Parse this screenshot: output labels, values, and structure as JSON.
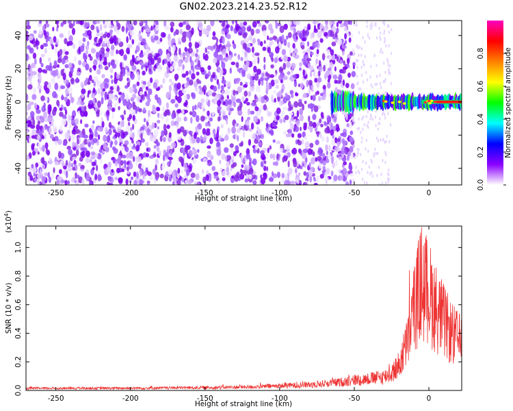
{
  "title": "GN02.2023.214.23.52.R12",
  "chart_data": [
    {
      "type": "heatmap",
      "xlabel": "Height of straight line (km)",
      "ylabel": "Frequency (Hz)",
      "xlim": [
        -270,
        22
      ],
      "ylim": [
        -50,
        49
      ],
      "xticks": [
        -250,
        -200,
        -150,
        -100,
        -50,
        0
      ],
      "yticks": [
        -40,
        -20,
        0,
        20,
        40
      ],
      "colorbar": {
        "label": "Normalized spectral amplitude",
        "range": [
          0,
          1
        ],
        "ticks": [
          "0.0",
          "0.2",
          "0.4",
          "0.6",
          "0.8"
        ],
        "colors": [
          "#ffffff",
          "#8b00ff",
          "#0000ff",
          "#00ffff",
          "#00ff00",
          "#ffff00",
          "#ff8000",
          "#ff0000",
          "#ff00c0"
        ]
      },
      "noise_extent_km": [
        -270,
        -50
      ],
      "signal": {
        "x_start": -65,
        "x_end": 22,
        "center_hz": 0,
        "half_width_hz": 4,
        "peak_x": 10
      }
    },
    {
      "type": "line",
      "xlabel": "Height of straight line (km)",
      "ylabel": "SNR (10 * v/v)",
      "y_multiplier": "(x10",
      "y_multiplier_exp": "4",
      "y_multiplier_close": ")",
      "xlim": [
        -270,
        22
      ],
      "ylim": [
        0,
        1.15
      ],
      "xticks": [
        -250,
        -200,
        -150,
        -100,
        -50,
        0
      ],
      "yticks": [
        "0.0",
        "0.2",
        "0.4",
        "0.6",
        "0.8",
        "1.0"
      ],
      "grid": false,
      "series": [
        {
          "color": "#ee3333",
          "envelope_x": [
            -270,
            -200,
            -150,
            -120,
            -100,
            -80,
            -60,
            -50,
            -40,
            -30,
            -25,
            -20,
            -15,
            -10,
            -5,
            0,
            5,
            10,
            15,
            20,
            22
          ],
          "envelope_y": [
            0.018,
            0.02,
            0.025,
            0.03,
            0.04,
            0.05,
            0.07,
            0.09,
            0.1,
            0.12,
            0.15,
            0.22,
            0.4,
            0.72,
            0.95,
            0.85,
            0.72,
            0.6,
            0.5,
            0.44,
            0.42
          ]
        }
      ]
    }
  ]
}
